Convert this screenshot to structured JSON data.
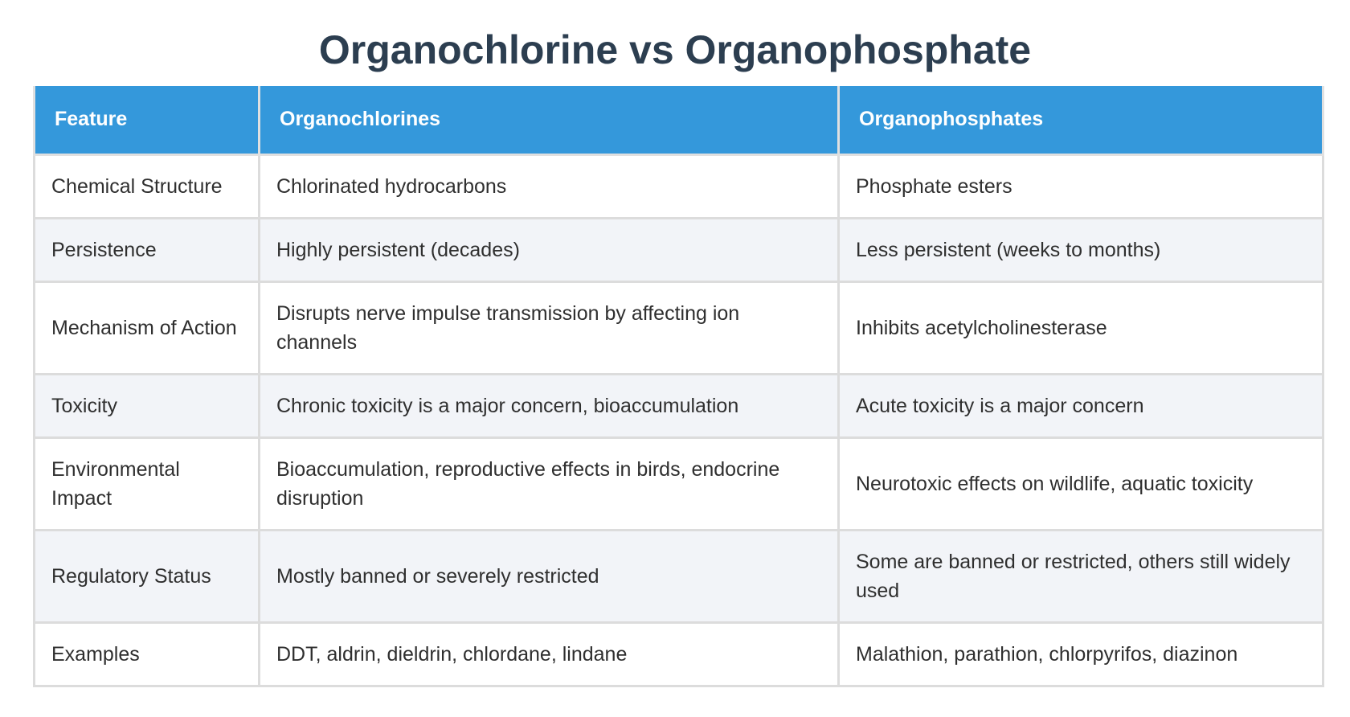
{
  "title": "Organochlorine vs Organophosphate",
  "table": {
    "headers": [
      "Feature",
      "Organochlorines",
      "Organophosphates"
    ],
    "rows": [
      [
        "Chemical Structure",
        "Chlorinated hydrocarbons",
        "Phosphate esters"
      ],
      [
        "Persistence",
        "Highly persistent (decades)",
        "Less persistent (weeks to months)"
      ],
      [
        "Mechanism of Action",
        "Disrupts nerve impulse transmission by affecting ion channels",
        "Inhibits acetylcholinesterase"
      ],
      [
        "Toxicity",
        "Chronic toxicity is a major concern, bioaccumulation",
        "Acute toxicity is a major concern"
      ],
      [
        "Environmental Impact",
        "Bioaccumulation, reproductive effects in birds, endocrine disruption",
        "Neurotoxic effects on wildlife, aquatic toxicity"
      ],
      [
        "Regulatory Status",
        "Mostly banned or severely restricted",
        "Some are banned or restricted, others still widely used"
      ],
      [
        "Examples",
        "DDT, aldrin, dieldrin, chlordane, lindane",
        "Malathion, parathion, chlorpyrifos, diazinon"
      ]
    ]
  },
  "colors": {
    "header_bg": "#3498db",
    "title": "#2c3e50",
    "row_alt_bg": "#f2f4f8"
  }
}
